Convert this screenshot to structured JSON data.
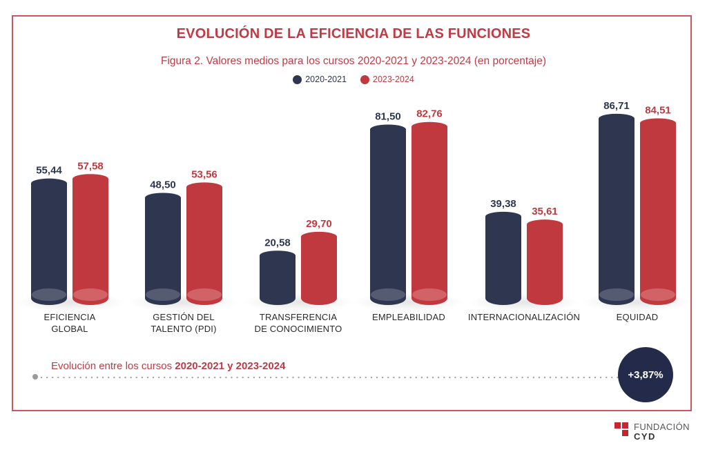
{
  "chart_data": {
    "type": "bar",
    "title": "EVOLUCIÓN DE LA EFICIENCIA DE LAS FUNCIONES",
    "subtitle": "Figura 2. Valores medios para los cursos 2020-2021 y 2023-2024 (en porcentaje)",
    "xlabel": "",
    "ylabel": "",
    "ylim": [
      0,
      100
    ],
    "grid": false,
    "legend_position": "top-center",
    "categories": [
      [
        "EFICIENCIA",
        "GLOBAL"
      ],
      [
        "GESTIÓN DEL",
        "TALENTO (PDI)"
      ],
      [
        "TRANSFERENCIA",
        "DE CONOCIMIENTO"
      ],
      [
        "EMPLEABILIDAD"
      ],
      [
        "INTERNACIONALIZACIÓN"
      ],
      [
        "EQUIDAD"
      ]
    ],
    "series": [
      {
        "name": "2020-2021",
        "color": "#2e3650",
        "values": [
          55.44,
          48.5,
          20.58,
          81.5,
          39.38,
          86.71
        ],
        "labels": [
          "55,44",
          "48,50",
          "20,58",
          "81,50",
          "39,38",
          "86,71"
        ]
      },
      {
        "name": "2023-2024",
        "color": "#c0393f",
        "values": [
          57.58,
          53.56,
          29.7,
          82.76,
          35.61,
          84.51
        ],
        "labels": [
          "57,58",
          "53,56",
          "29,70",
          "82,76",
          "35,61",
          "84,51"
        ]
      }
    ],
    "annotation": {
      "text_prefix": "Evolución entre los cursos ",
      "text_bold": "2020-2021 y 2023-2024",
      "value": "+3,87%"
    }
  },
  "colors": {
    "accent": "#c03a44",
    "navy": "#2e3650",
    "red": "#c0393f",
    "badge": "#232a4a"
  },
  "logo": {
    "line1": "FUNDACIÓN",
    "line2": "CYD"
  }
}
